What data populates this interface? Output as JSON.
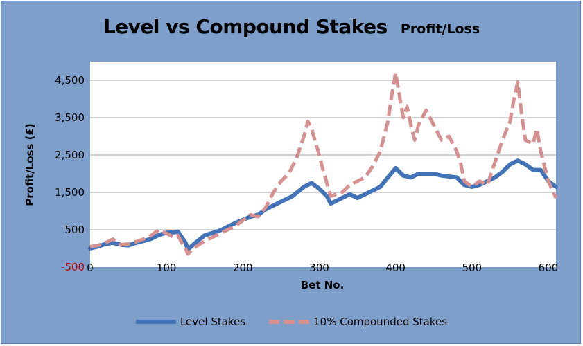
{
  "chart_data": {
    "type": "line",
    "title": "Level vs Compound Stakes",
    "subtitle": "Profit/Loss",
    "xlabel": "Bet No.",
    "ylabel": "Profit/Loss (£)",
    "xlim": [
      0,
      610
    ],
    "ylim": [
      -500,
      5000
    ],
    "xticks": [
      "0",
      "100",
      "200",
      "300",
      "400",
      "500",
      "600"
    ],
    "yticks": [
      "-500",
      "500",
      "1,500",
      "2,500",
      "3,500",
      "4,500"
    ],
    "grid": "horizontal",
    "legend_position": "bottom",
    "series": [
      {
        "name": "Level Stakes",
        "color": "#4272b8",
        "style": "solid",
        "points": [
          [
            0,
            0
          ],
          [
            10,
            50
          ],
          [
            20,
            120
          ],
          [
            30,
            150
          ],
          [
            40,
            100
          ],
          [
            50,
            80
          ],
          [
            60,
            150
          ],
          [
            70,
            200
          ],
          [
            80,
            260
          ],
          [
            90,
            360
          ],
          [
            100,
            420
          ],
          [
            110,
            430
          ],
          [
            115,
            450
          ],
          [
            120,
            300
          ],
          [
            125,
            150
          ],
          [
            128,
            -30
          ],
          [
            135,
            100
          ],
          [
            150,
            350
          ],
          [
            170,
            480
          ],
          [
            190,
            680
          ],
          [
            210,
            850
          ],
          [
            220,
            900
          ],
          [
            230,
            1050
          ],
          [
            250,
            1250
          ],
          [
            265,
            1400
          ],
          [
            280,
            1650
          ],
          [
            290,
            1750
          ],
          [
            300,
            1600
          ],
          [
            310,
            1400
          ],
          [
            315,
            1200
          ],
          [
            330,
            1350
          ],
          [
            340,
            1450
          ],
          [
            350,
            1350
          ],
          [
            360,
            1450
          ],
          [
            380,
            1650
          ],
          [
            390,
            1900
          ],
          [
            400,
            2150
          ],
          [
            410,
            1950
          ],
          [
            420,
            1900
          ],
          [
            430,
            2000
          ],
          [
            450,
            2000
          ],
          [
            460,
            1950
          ],
          [
            480,
            1900
          ],
          [
            490,
            1700
          ],
          [
            500,
            1650
          ],
          [
            510,
            1700
          ],
          [
            520,
            1800
          ],
          [
            530,
            1900
          ],
          [
            540,
            2050
          ],
          [
            550,
            2250
          ],
          [
            560,
            2350
          ],
          [
            570,
            2250
          ],
          [
            580,
            2100
          ],
          [
            590,
            2100
          ],
          [
            600,
            1800
          ],
          [
            610,
            1650
          ]
        ]
      },
      {
        "name": "10% Compounded Stakes",
        "color": "#d79090",
        "style": "dashed",
        "points": [
          [
            0,
            50
          ],
          [
            10,
            80
          ],
          [
            20,
            150
          ],
          [
            30,
            250
          ],
          [
            40,
            100
          ],
          [
            50,
            120
          ],
          [
            60,
            180
          ],
          [
            70,
            250
          ],
          [
            80,
            350
          ],
          [
            90,
            500
          ],
          [
            100,
            400
          ],
          [
            110,
            300
          ],
          [
            115,
            350
          ],
          [
            120,
            150
          ],
          [
            125,
            0
          ],
          [
            128,
            -150
          ],
          [
            135,
            0
          ],
          [
            150,
            200
          ],
          [
            170,
            400
          ],
          [
            190,
            600
          ],
          [
            210,
            900
          ],
          [
            220,
            850
          ],
          [
            230,
            1100
          ],
          [
            240,
            1500
          ],
          [
            250,
            1800
          ],
          [
            260,
            2000
          ],
          [
            270,
            2400
          ],
          [
            280,
            3000
          ],
          [
            285,
            3400
          ],
          [
            290,
            3200
          ],
          [
            300,
            2500
          ],
          [
            305,
            2100
          ],
          [
            315,
            1400
          ],
          [
            330,
            1500
          ],
          [
            340,
            1700
          ],
          [
            350,
            1800
          ],
          [
            360,
            1900
          ],
          [
            370,
            2200
          ],
          [
            380,
            2600
          ],
          [
            390,
            3400
          ],
          [
            395,
            4100
          ],
          [
            400,
            4700
          ],
          [
            405,
            4100
          ],
          [
            410,
            3500
          ],
          [
            415,
            3800
          ],
          [
            420,
            3300
          ],
          [
            425,
            2900
          ],
          [
            430,
            3300
          ],
          [
            440,
            3700
          ],
          [
            450,
            3300
          ],
          [
            460,
            2900
          ],
          [
            470,
            3000
          ],
          [
            480,
            2600
          ],
          [
            485,
            2300
          ],
          [
            490,
            1800
          ],
          [
            500,
            1650
          ],
          [
            510,
            1800
          ],
          [
            520,
            1700
          ],
          [
            530,
            2300
          ],
          [
            540,
            2900
          ],
          [
            550,
            3400
          ],
          [
            555,
            4000
          ],
          [
            560,
            4450
          ],
          [
            565,
            3600
          ],
          [
            570,
            2900
          ],
          [
            580,
            2800
          ],
          [
            585,
            3200
          ],
          [
            590,
            2600
          ],
          [
            600,
            1800
          ],
          [
            610,
            1350
          ]
        ]
      }
    ]
  }
}
